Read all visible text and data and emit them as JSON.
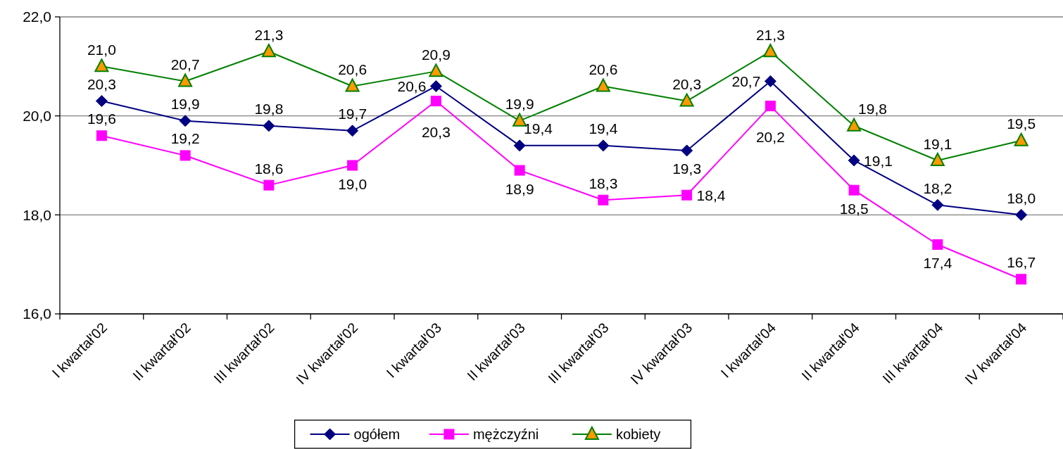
{
  "chart_data": {
    "type": "line",
    "categories": [
      "I kwartał'02",
      "II kwartał'02",
      "III kwartał'02",
      "IV kwartał'02",
      "I kwartał'03",
      "II kwartał'03",
      "III kwartał'03",
      "IV kwartał'03",
      "I kwartał'04",
      "II kwartał'04",
      "III kwartał'04",
      "IV kwartał'04"
    ],
    "series": [
      {
        "name": "ogółem",
        "color": "#000080",
        "marker": "diamond",
        "values": [
          20.3,
          19.9,
          19.8,
          19.7,
          20.6,
          19.4,
          19.4,
          19.3,
          20.7,
          19.1,
          18.2,
          18.0
        ],
        "value_labels": [
          "20,3",
          "19,9",
          "19,8",
          "19,7",
          "20,6",
          "19,4",
          "19,4",
          "19,3",
          "20,7",
          "19,1",
          "18,2",
          "18,0"
        ]
      },
      {
        "name": "mężczyźni",
        "color": "#ff00ff",
        "marker": "square",
        "values": [
          19.6,
          19.2,
          18.6,
          19.0,
          20.3,
          18.9,
          18.3,
          18.4,
          20.2,
          18.5,
          17.4,
          16.7
        ],
        "value_labels": [
          "19,6",
          "19,2",
          "18,6",
          "19,0",
          "20,3",
          "18,9",
          "18,3",
          "18,4",
          "20,2",
          "18,5",
          "17,4",
          "16,7"
        ]
      },
      {
        "name": "kobiety",
        "color": "#008000",
        "colors": [
          "#ff9900",
          "#ff9900",
          "#ff9900",
          "#ff9900",
          "#ff9900",
          "#ff9900",
          "#ff9900",
          "#ff9900",
          "#ff9900",
          "#ff9900",
          "#ff9900",
          "#ff9900"
        ],
        "marker": "triangle",
        "values": [
          21.0,
          20.7,
          21.3,
          20.6,
          20.9,
          19.9,
          20.6,
          20.3,
          21.3,
          19.8,
          19.1,
          19.5
        ],
        "value_labels": [
          "21,0",
          "20,7",
          "21,3",
          "20,6",
          "20,9",
          "19,9",
          "20,6",
          "20,3",
          "21,3",
          "19,8",
          "19,1",
          "19,5"
        ]
      }
    ],
    "ylim": [
      16,
      22
    ],
    "yticks": [
      {
        "value": 16,
        "label": "16,0"
      },
      {
        "value": 18,
        "label": "18,0"
      },
      {
        "value": 20,
        "label": "20,0"
      },
      {
        "value": 22,
        "label": "22,0"
      }
    ],
    "grid": "y",
    "legend": "bottom"
  }
}
